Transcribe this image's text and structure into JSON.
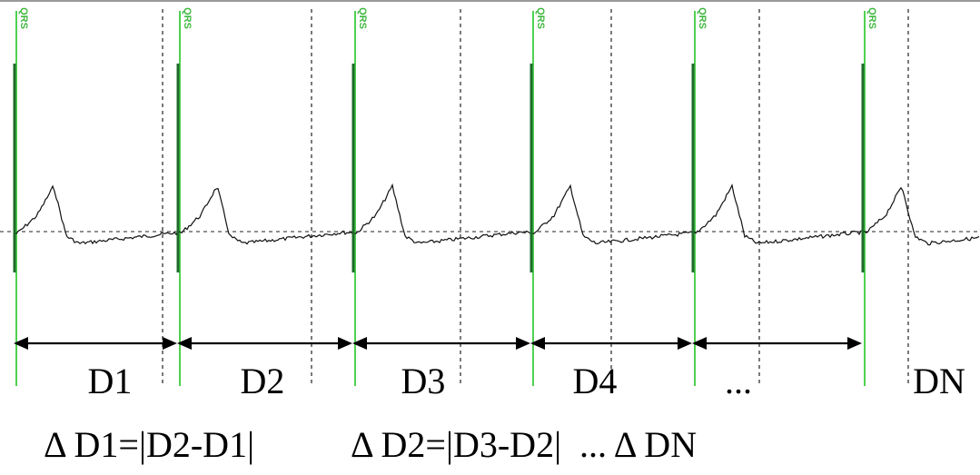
{
  "diagram": {
    "beat_marker_label": "QRS",
    "interval_labels": [
      "D1",
      "D2",
      "D3",
      "D4",
      "...",
      "DN"
    ],
    "formula_labels": [
      "Δ D1=|D2-D1|",
      "Δ D2=|D3-D2|",
      "... Δ DN"
    ],
    "colors": {
      "qrs_marker": "#4fd14f",
      "qrs_text": "#3fb83f",
      "signal": "#111111",
      "spike": "#1e6b2a",
      "grid": "#222222",
      "frame": "#9a9a9a",
      "arrow": "#000000"
    }
  }
}
